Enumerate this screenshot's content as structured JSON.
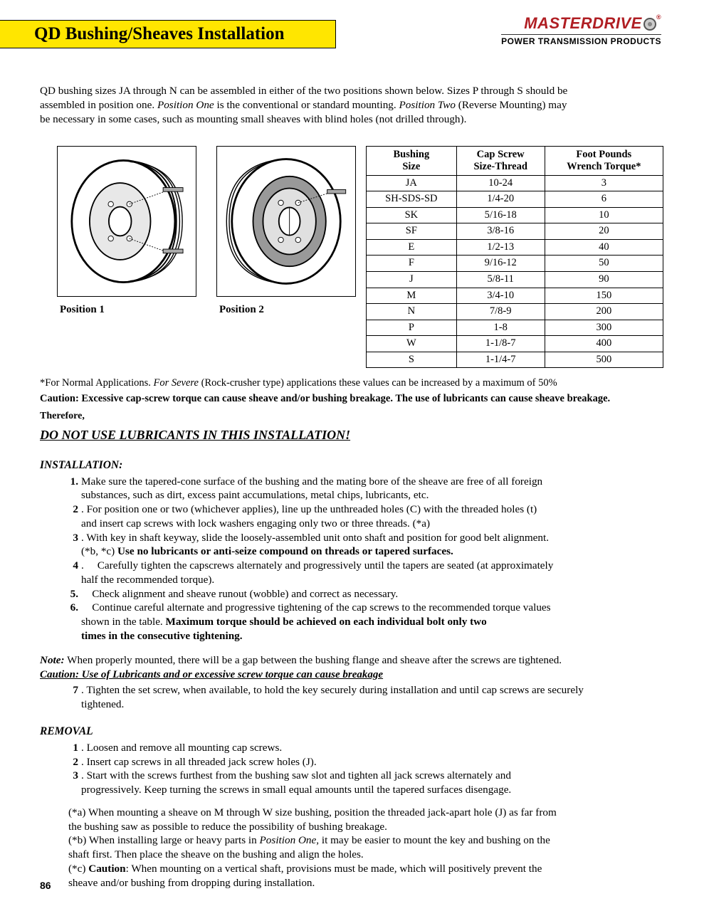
{
  "brand": {
    "name": "MASTERDRIVE",
    "tagline": "POWER TRANSMISSION PRODUCTS"
  },
  "title": "QD Bushing/Sheaves Installation",
  "intro": {
    "line1a": "QD bushing sizes JA through N can be assembled in either of the two positions shown below.  Sizes P through  S should be",
    "line2a": "assembled in position one.  ",
    "pos1_i": "Position One",
    "line2b": " is the conventional or standard mounting.  ",
    "pos2_i": "Position Two",
    "line2c": " (Reverse Mounting)  may",
    "line3": "be necessary in some cases, such as mounting small sheaves with blind holes (not drilled through)."
  },
  "figures": {
    "cap1": "Position 1",
    "cap2": "Position 2"
  },
  "table": {
    "headers": {
      "c1a": "Bushing",
      "c1b": "Size",
      "c2a": "Cap Screw",
      "c2b": "Size-Thread",
      "c3a": "Foot Pounds",
      "c3b": "Wrench Torque*"
    },
    "rows": [
      {
        "s": "JA",
        "t": "10-24",
        "q": "3"
      },
      {
        "s": "SH-SDS-SD",
        "t": "1/4-20",
        "q": "6"
      },
      {
        "s": "SK",
        "t": "5/16-18",
        "q": "10"
      },
      {
        "s": "SF",
        "t": "3/8-16",
        "q": "20"
      },
      {
        "s": "E",
        "t": "1/2-13",
        "q": "40"
      },
      {
        "s": "F",
        "t": "9/16-12",
        "q": "50"
      },
      {
        "s": "J",
        "t": "5/8-11",
        "q": "90"
      },
      {
        "s": "M",
        "t": "3/4-10",
        "q": "150"
      },
      {
        "s": "N",
        "t": "7/8-9",
        "q": "200"
      },
      {
        "s": "P",
        "t": "1-8",
        "q": "300"
      },
      {
        "s": "W",
        "t": "1-1/8-7",
        "q": "400"
      },
      {
        "s": "S",
        "t": "1-1/4-7",
        "q": "500"
      }
    ]
  },
  "footnote1": {
    "a": "*For Normal Applications. ",
    "b": "For Severe",
    "c": " (Rock-crusher type) applications these values can be increased by a maximum of 50%"
  },
  "caution1": "Caution: Excessive cap-screw torque can cause sheave and/or bushing breakage. The use of lubricants can cause sheave breakage.",
  "therefore": "Therefore,",
  "donot": "DO NOT USE LUBRICANTS IN THIS INSTALLATION!",
  "install_head": "INSTALLATION:",
  "install": {
    "s1a": "Make sure the tapered-cone surface of the bushing and the mating bore of the sheave are free of all foreign",
    "s1b": "substances, such as dirt, excess paint accumulations, metal chips, lubricants, etc.",
    "s2a": "For position one or two (whichever applies), line up the unthreaded holes (C) with the threaded holes (t)",
    "s2b": "and insert cap screws with lock washers engaging only two or three threads.   (*a)",
    "s3a": "With key in shaft keyway, slide the loosely-assembled unit onto shaft and position for good belt alignment.",
    "s3b": "(*b, *c)  ",
    "s3c": "Use no lubricants or anti-seize compound on threads or tapered surfaces.",
    "s4a": "Carefully tighten the capscrews alternately and progressively until the tapers are seated (at approximately",
    "s4b": "half the recommended torque).",
    "s5": "Check alignment and sheave runout (wobble) and correct as necessary.",
    "s6a": "Continue careful alternate and progressive tightening of the cap screws to the recommended torque values",
    "s6b": "shown in the table.  ",
    "s6c": "Maximum torque should be achieved on each individual bolt only two",
    "s6d": "times in the consecutive tightening."
  },
  "note": {
    "label": "Note:",
    "text": "  When properly mounted, there will be a gap between the bushing flange and sheave after the screws are tightened."
  },
  "caution2": "Caution:  Use of Lubricants and or excessive screw torque can cause breakage",
  "step7a": "Tighten the set screw, when available, to hold the key securely during installation and until cap screws are securely",
  "step7b": "tightened.",
  "removal_head": "REMOVAL",
  "removal": {
    "r1": "Loosen and remove all mounting cap screws.",
    "r2": "Insert cap screws in all threaded jack screw holes (J).",
    "r3a": "Start with the screws furthest from the bushing saw slot and tighten all jack screws alternately and",
    "r3b": "progressively.  Keep turning the screws in small equal amounts until the tapered surfaces disengage."
  },
  "refs": {
    "a1": "(*a)  When mounting a sheave on M through W size bushing, position the threaded jack-apart hole (J) as far from",
    "a2": "the bushing saw as possible to reduce the possibility of bushing breakage.",
    "b1a": "(*b)  When installing large or heavy parts in ",
    "b1i": "Position One",
    "b1b": ", it may be easier to mount the key and bushing on the",
    "b2": "shaft first.  Then place the sheave on the bushing and align the holes.",
    "c1a": "(*c)  ",
    "c1b": "Caution",
    "c1c": ": When mounting on a vertical shaft, provisions must be made, which will positively prevent the",
    "c2": "sheave and/or bushing from dropping during installation."
  },
  "page_number": "86"
}
